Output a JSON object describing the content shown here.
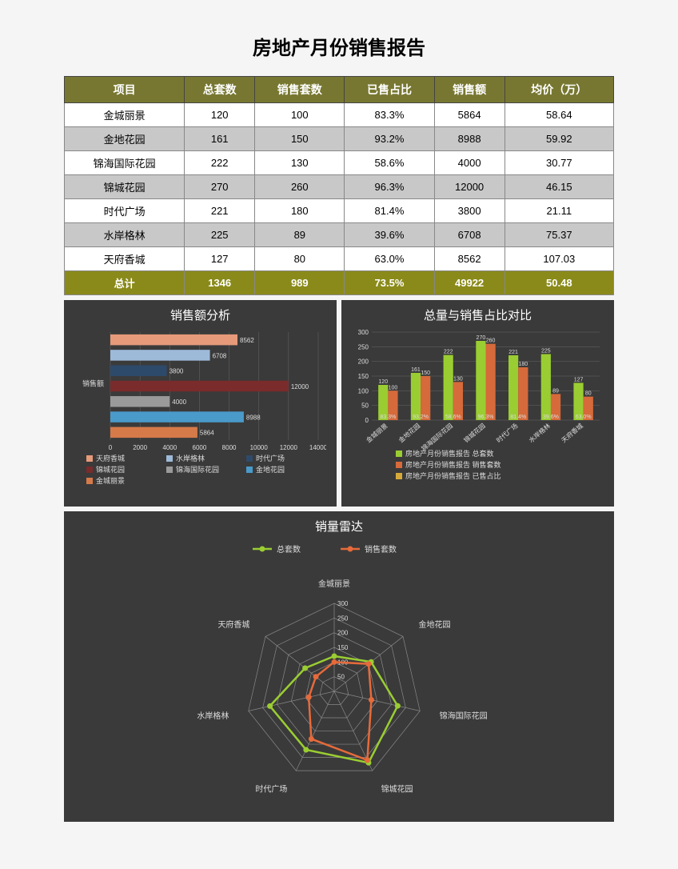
{
  "page_title": "房地产月份销售报告",
  "table": {
    "columns": [
      "项目",
      "总套数",
      "销售套数",
      "已售占比",
      "销售额",
      "均价（万）"
    ],
    "rows": [
      [
        "金城丽景",
        "120",
        "100",
        "83.3%",
        "5864",
        "58.64"
      ],
      [
        "金地花园",
        "161",
        "150",
        "93.2%",
        "8988",
        "59.92"
      ],
      [
        "锦海国际花园",
        "222",
        "130",
        "58.6%",
        "4000",
        "30.77"
      ],
      [
        "锦城花园",
        "270",
        "260",
        "96.3%",
        "12000",
        "46.15"
      ],
      [
        "时代广场",
        "221",
        "180",
        "81.4%",
        "3800",
        "21.11"
      ],
      [
        "水岸格林",
        "225",
        "89",
        "39.6%",
        "6708",
        "75.37"
      ],
      [
        "天府香城",
        "127",
        "80",
        "63.0%",
        "8562",
        "107.03"
      ]
    ],
    "total_label": "总计",
    "total": [
      "1346",
      "989",
      "73.5%",
      "49922",
      "50.48"
    ]
  },
  "hbar": {
    "title": "销售额分析",
    "ylabel": "销售额",
    "xlim": [
      0,
      14000
    ],
    "xtick_step": 2000,
    "items": [
      {
        "label": "天府香城",
        "value": 8562,
        "color": "#e69a7a"
      },
      {
        "label": "水岸格林",
        "value": 6708,
        "color": "#9ebad9"
      },
      {
        "label": "时代广场",
        "value": 3800,
        "color": "#2e4a6a"
      },
      {
        "label": "锦城花园",
        "value": 12000,
        "color": "#7a2b2b"
      },
      {
        "label": "锦海国际花园",
        "value": 4000,
        "color": "#9a9a9a"
      },
      {
        "label": "金地花园",
        "value": 8988,
        "color": "#4a9aca"
      },
      {
        "label": "金城丽景",
        "value": 5864,
        "color": "#d67a4a"
      }
    ],
    "bg": "#3a3a3a",
    "grid": "#666666",
    "text": "#dddddd"
  },
  "bar": {
    "title": "总量与销售占比对比",
    "ylim": [
      0,
      300
    ],
    "ytick_step": 50,
    "categories": [
      "金城丽景",
      "金地花园",
      "锦海国际花园",
      "锦城花园",
      "时代广场",
      "水岸格林",
      "天府香城"
    ],
    "series": [
      {
        "label": "房地产月份销售报告 总套数",
        "color": "#9acd32",
        "values": [
          120,
          161,
          222,
          270,
          221,
          225,
          127
        ]
      },
      {
        "label": "房地产月份销售报告 销售套数",
        "color": "#d66a3a",
        "values": [
          100,
          150,
          130,
          260,
          180,
          89,
          80
        ]
      },
      {
        "label": "房地产月份销售报告 已售占比",
        "color": "#d6aa3a",
        "labels_only": [
          "83.3%",
          "93.2%",
          "58.6%",
          "96.3%",
          "81.4%",
          "39.6%",
          "63.0%"
        ]
      }
    ],
    "bg": "#3a3a3a",
    "grid": "#666666",
    "text": "#dddddd"
  },
  "radar": {
    "title": "销量雷达",
    "categories": [
      "金城丽景",
      "金地花园",
      "锦海国际花园",
      "锦城花园",
      "时代广场",
      "水岸格林",
      "天府香城"
    ],
    "rings": [
      50,
      100,
      150,
      200,
      250,
      300
    ],
    "max": 300,
    "series": [
      {
        "label": "总套数",
        "color": "#9acd32",
        "values": [
          120,
          161,
          222,
          270,
          221,
          225,
          127
        ]
      },
      {
        "label": "销售套数",
        "color": "#e66a3a",
        "values": [
          100,
          150,
          130,
          260,
          180,
          89,
          80
        ]
      }
    ],
    "bg": "#3a3a3a",
    "text": "#dddddd",
    "grid": "#888888"
  }
}
